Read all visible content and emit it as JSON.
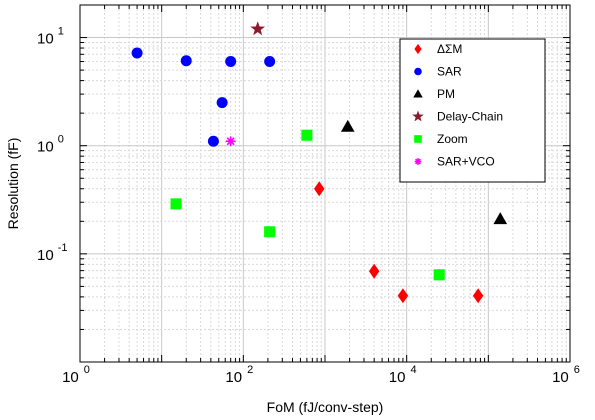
{
  "chart_data": {
    "type": "scatter",
    "xlabel": "FoM (fJ/conv-step)",
    "ylabel": "Resolution (fF)",
    "x_scale": "log",
    "y_scale": "log",
    "xlim": [
      1,
      1000000
    ],
    "ylim": [
      0.01,
      20
    ],
    "grid": true,
    "legend_position": "top-right",
    "x_ticks": [
      {
        "base": "10",
        "exp": "0",
        "value": 1
      },
      {
        "base": "10",
        "exp": "2",
        "value": 100
      },
      {
        "base": "10",
        "exp": "4",
        "value": 10000
      },
      {
        "base": "10",
        "exp": "6",
        "value": 1000000
      }
    ],
    "y_ticks": [
      {
        "base": "10",
        "exp": "1",
        "value": 10
      },
      {
        "base": "10",
        "exp": "0",
        "value": 1
      },
      {
        "base": "10",
        "exp": "-1",
        "value": 0.1
      }
    ],
    "series": [
      {
        "name": "ΔΣΜ",
        "marker": "diamond",
        "color": "#ff0000",
        "points": [
          [
            850,
            0.4
          ],
          [
            4000,
            0.069
          ],
          [
            9000,
            0.041
          ],
          [
            75000,
            0.041
          ]
        ]
      },
      {
        "name": "SAR",
        "marker": "circle",
        "color": "#0000ff",
        "points": [
          [
            5,
            7.2
          ],
          [
            20,
            6.1
          ],
          [
            70,
            6.0
          ],
          [
            210,
            6.0
          ],
          [
            55,
            2.5
          ],
          [
            43,
            1.1
          ]
        ]
      },
      {
        "name": "PM",
        "marker": "triangle",
        "color": "#000000",
        "points": [
          [
            1900,
            1.5
          ],
          [
            140000,
            0.21
          ]
        ]
      },
      {
        "name": "Delay-Chain",
        "marker": "star",
        "color": "#8b1a2a",
        "points": [
          [
            150,
            12
          ]
        ]
      },
      {
        "name": "Zoom",
        "marker": "square",
        "color": "#00ff00",
        "points": [
          [
            15,
            0.29
          ],
          [
            600,
            1.25
          ],
          [
            210,
            0.16
          ],
          [
            25000,
            0.064
          ]
        ]
      },
      {
        "name": "SAR+VCO",
        "marker": "asterisk",
        "color": "#ff00ff",
        "points": [
          [
            70,
            1.1
          ]
        ]
      }
    ]
  }
}
